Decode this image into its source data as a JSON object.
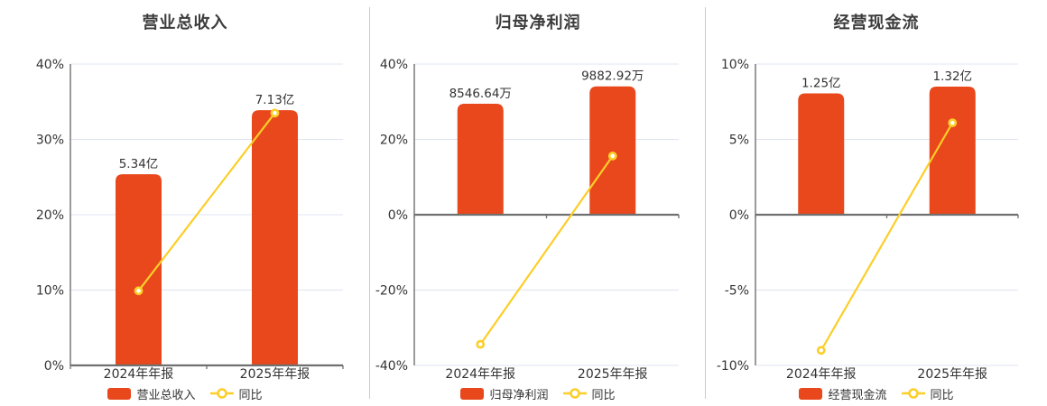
{
  "page": {
    "background": "#ffffff",
    "divider_color": "#cccccc"
  },
  "colors": {
    "bar": "#e8481b",
    "line": "#fcce28",
    "marker_fill": "#ffffff",
    "grid": "#dfe4f0",
    "axis": "#707070",
    "text": "#333333",
    "title": "#3c3c3c"
  },
  "chart_data": [
    {
      "type": "bar+line",
      "title": "营业总收入",
      "categories": [
        "2024年年报",
        "2025年年报"
      ],
      "bar_series": {
        "name": "营业总收入",
        "values": [
          5.34,
          7.13
        ],
        "unit": "亿",
        "labels": [
          "5.34亿",
          "7.13亿"
        ],
        "axis_max": 8.42
      },
      "line_series": {
        "name": "同比",
        "values_pct": [
          9.9,
          33.5
        ]
      },
      "y_axis": {
        "min": 0,
        "max": 40,
        "ticks": [
          0,
          10,
          20,
          30,
          40
        ],
        "tick_labels": [
          "0%",
          "10%",
          "20%",
          "30%",
          "40%"
        ]
      },
      "legend": [
        "营业总收入",
        "同比"
      ],
      "grid": true,
      "legend_position": "bottom"
    },
    {
      "type": "bar+line",
      "title": "归母净利润",
      "categories": [
        "2024年年报",
        "2025年年报"
      ],
      "bar_series": {
        "name": "归母净利润",
        "values": [
          8546.64,
          9882.92
        ],
        "unit": "万",
        "labels": [
          "8546.64万",
          "9882.92万"
        ],
        "axis_max": 11600
      },
      "line_series": {
        "name": "同比",
        "values_pct": [
          -34.4,
          15.6
        ]
      },
      "y_axis": {
        "min": -40,
        "max": 40,
        "ticks": [
          -40,
          -20,
          0,
          20,
          40
        ],
        "tick_labels": [
          "-40%",
          "-20%",
          "0%",
          "20%",
          "40%"
        ]
      },
      "legend": [
        "归母净利润",
        "同比"
      ],
      "grid": true,
      "legend_position": "bottom"
    },
    {
      "type": "bar+line",
      "title": "经营现金流",
      "categories": [
        "2024年年报",
        "2025年年报"
      ],
      "bar_series": {
        "name": "经营现金流",
        "values": [
          1.25,
          1.32
        ],
        "unit": "亿",
        "labels": [
          "1.25亿",
          "1.32亿"
        ],
        "axis_max": 1.552
      },
      "line_series": {
        "name": "同比",
        "values_pct": [
          -9.0,
          6.1
        ]
      },
      "y_axis": {
        "min": -10,
        "max": 10,
        "ticks": [
          -10,
          -5,
          0,
          5,
          10
        ],
        "tick_labels": [
          "-10%",
          "-5%",
          "0%",
          "5%",
          "10%"
        ]
      },
      "legend": [
        "经营现金流",
        "同比"
      ],
      "grid": true,
      "legend_position": "bottom"
    }
  ]
}
